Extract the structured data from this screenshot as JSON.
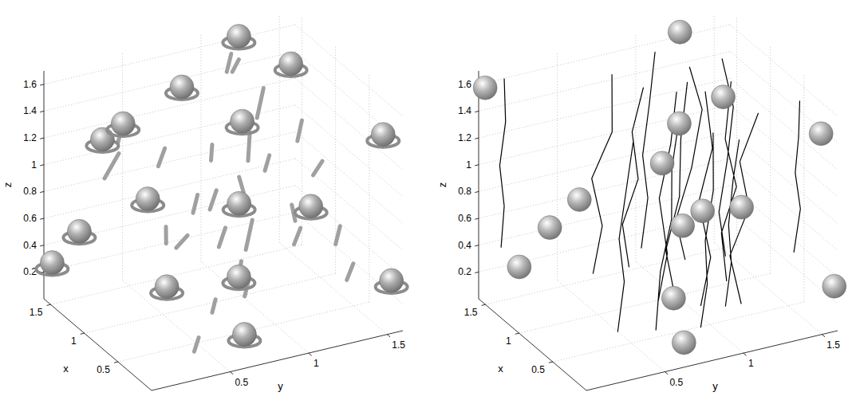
{
  "chart_data": [
    {
      "type": "scatter3d",
      "xlabel": "x",
      "ylabel": "y",
      "zlabel": "z",
      "xlim": [
        0,
        1.6
      ],
      "ylim": [
        0,
        1.6
      ],
      "zlim": [
        0,
        1.7
      ],
      "xticks": [
        0.5,
        1,
        1.5
      ],
      "yticks": [
        0.5,
        1,
        1.5
      ],
      "zticks": [
        0.2,
        0.4,
        0.6,
        0.8,
        1,
        1.2,
        1.4,
        1.6
      ],
      "grid": true,
      "series": [
        {
          "type": "line",
          "color": "#a0a0a0",
          "x": [
            0.9,
            0.92,
            null,
            0.85,
            0.8,
            null,
            0.7,
            0.72,
            null,
            0.6,
            0.65,
            null,
            1.0,
            1.02,
            null,
            0.5,
            0.45,
            null,
            1.2,
            1.25,
            null,
            1.4,
            1.42,
            null,
            1.3,
            1.25,
            null,
            0.4,
            0.38,
            null,
            0.3,
            0.35,
            null,
            1.1,
            1.15,
            null,
            0.2,
            0.25,
            null,
            1.5,
            1.45,
            null,
            0.6,
            0.62,
            null,
            0.95,
            1.0,
            null,
            0.75,
            0.78,
            null,
            1.45,
            1.5,
            null,
            0.3,
            0.35,
            null,
            1.0,
            1.02,
            null,
            0.8,
            0.82,
            null,
            1.35,
            1.4,
            null,
            0.55,
            0.6,
            null,
            1.1,
            1.12,
            null,
            0.25,
            0.3,
            null,
            1.25,
            1.27
          ],
          "y": [
            1.0,
            1.02,
            null,
            0.95,
            0.9,
            null,
            0.9,
            0.95,
            null,
            0.8,
            0.85,
            null,
            1.1,
            1.15,
            null,
            0.6,
            0.6,
            null,
            0.3,
            0.35,
            null,
            0.3,
            0.4,
            null,
            0.6,
            0.62,
            null,
            1.2,
            1.25,
            null,
            1.3,
            1.35,
            null,
            1.4,
            1.45,
            null,
            1.0,
            1.0,
            null,
            0.8,
            0.85,
            null,
            1.5,
            1.55,
            null,
            0.5,
            0.52,
            null,
            0.7,
            0.72,
            null,
            1.1,
            1.15,
            null,
            0.4,
            0.45,
            null,
            0.8,
            0.85,
            null,
            1.25,
            1.3,
            null,
            1.3,
            1.35,
            null,
            0.5,
            0.55,
            null,
            0.9,
            0.95,
            null,
            0.7,
            0.75,
            null,
            1.05,
            1.1
          ],
          "z": [
            1.05,
            1.25,
            null,
            0.85,
            1.0,
            null,
            0.5,
            0.7,
            null,
            0.3,
            0.45,
            null,
            1.3,
            1.5,
            null,
            0.2,
            0.32,
            null,
            1.25,
            1.35,
            null,
            0.9,
            1.05,
            null,
            0.95,
            1.1,
            null,
            1.1,
            1.2,
            null,
            0.6,
            0.7,
            null,
            1.0,
            1.12,
            null,
            0.9,
            1.0,
            null,
            0.2,
            0.3,
            null,
            0.15,
            0.25,
            null,
            0.55,
            0.65,
            null,
            1.2,
            1.3,
            null,
            1.45,
            1.55,
            null,
            0.05,
            0.12,
            null,
            0.7,
            0.82,
            null,
            0.4,
            0.5,
            null,
            0.7,
            0.78,
            null,
            0.95,
            1.05,
            null,
            0.35,
            0.47,
            null,
            0.4,
            0.5,
            null,
            1.55,
            1.62
          ]
        },
        {
          "type": "scatter",
          "marker": "shell",
          "color": "#b0b0b0",
          "x": [
            1.55,
            1.3,
            1.1,
            0.8,
            0.2,
            1.2,
            0.9,
            0.5,
            0.3,
            1.5,
            1.4,
            1.5,
            0.8,
            0.1,
            1.5,
            1.5
          ],
          "y": [
            1.22,
            0.75,
            0.29,
            0.92,
            1.56,
            0.49,
            1.4,
            0.77,
            0.72,
            0.01,
            0.14,
            1.2,
            0.44,
            1.57,
            0.33,
            1.53
          ],
          "z": [
            1.64,
            1.5,
            1.44,
            1.41,
            1.39,
            0.78,
            0.6,
            0.42,
            0.09,
            0.31,
            0.55,
            0.42,
            0.31,
            0.34,
            1.14,
            1.37
          ]
        }
      ]
    },
    {
      "type": "scatter3d",
      "xlabel": "x",
      "ylabel": "y",
      "zlabel": "z",
      "xlim": [
        0,
        1.6
      ],
      "ylim": [
        0,
        1.6
      ],
      "zlim": [
        0,
        1.7
      ],
      "xticks": [
        0.5,
        1,
        1.5
      ],
      "yticks": [
        0.5,
        1,
        1.5
      ],
      "zticks": [
        0.2,
        0.4,
        0.6,
        0.8,
        1,
        1.2,
        1.4,
        1.6
      ],
      "grid": true,
      "series": [
        {
          "type": "line",
          "color": "#000000",
          "x": [
            0.9,
            0.92,
            0.88,
            0.93,
            0.95,
            null,
            0.8,
            0.78,
            0.83,
            0.8,
            0.76,
            null,
            1.1,
            1.12,
            1.05,
            1.08,
            1.15,
            null,
            0.6,
            0.65,
            0.6,
            0.55,
            0.6,
            null,
            1.3,
            1.28,
            1.32,
            1.25,
            1.3,
            null,
            0.5,
            0.55,
            0.5,
            0.52,
            0.48,
            null,
            1.5,
            1.5,
            1.52,
            1.55,
            1.5,
            null,
            1.0,
            1.05,
            0.98,
            1.0,
            1.02,
            null,
            0.3,
            0.32,
            0.28,
            0.3,
            0.33,
            null,
            0.7,
            0.72,
            0.68,
            0.75,
            0.7,
            null,
            1.2,
            1.18,
            1.22,
            1.2,
            1.25,
            null,
            0.4,
            0.42,
            0.38,
            0.4,
            0.45,
            null,
            1.4,
            1.42,
            1.38,
            1.4,
            1.43,
            null,
            0.95,
            0.98,
            0.92,
            0.97,
            1.0,
            null,
            0.15,
            0.18,
            0.15,
            0.2,
            0.18,
            null,
            0.75,
            0.72,
            0.78,
            0.74,
            0.8
          ],
          "y": [
            0.95,
            0.9,
            0.97,
            1.0,
            1.05,
            null,
            0.8,
            0.85,
            0.82,
            0.88,
            0.9,
            null,
            1.1,
            1.05,
            1.12,
            1.2,
            1.15,
            null,
            0.7,
            0.75,
            0.8,
            0.78,
            0.85,
            null,
            0.6,
            0.65,
            0.6,
            0.7,
            0.72,
            null,
            1.2,
            1.15,
            1.25,
            1.2,
            1.3,
            null,
            0.1,
            0.12,
            0.1,
            0.15,
            0.12,
            null,
            0.7,
            0.68,
            0.75,
            0.72,
            0.8,
            null,
            1.45,
            1.5,
            1.45,
            1.48,
            1.5,
            null,
            0.5,
            0.55,
            0.5,
            0.58,
            0.6,
            null,
            1.4,
            1.35,
            1.42,
            1.45,
            1.4,
            null,
            0.9,
            0.95,
            0.92,
            0.98,
            1.0,
            null,
            0.95,
            1.0,
            0.95,
            1.0,
            1.05,
            null,
            1.3,
            1.28,
            1.35,
            1.3,
            1.35,
            null,
            0.95,
            1.0,
            0.97,
            1.02,
            1.05,
            null,
            1.05,
            1.1,
            1.05,
            1.12,
            1.1
          ],
          "z": [
            0.05,
            0.4,
            0.8,
            1.2,
            1.6,
            null,
            0.1,
            0.45,
            0.85,
            1.25,
            1.65,
            null,
            0.2,
            0.5,
            0.9,
            1.3,
            1.6,
            null,
            0.0,
            0.4,
            0.8,
            1.2,
            1.55,
            null,
            0.15,
            0.5,
            0.85,
            1.2,
            1.6,
            null,
            0.1,
            0.45,
            0.8,
            1.15,
            1.5,
            null,
            0.4,
            0.7,
            1.0,
            1.3,
            1.65,
            null,
            0.3,
            0.6,
            0.95,
            1.3,
            1.6,
            null,
            0.5,
            0.8,
            1.1,
            1.35,
            1.6,
            null,
            0.0,
            0.35,
            0.7,
            1.05,
            1.4,
            null,
            0.1,
            0.45,
            0.8,
            1.2,
            1.55,
            null,
            0.05,
            0.35,
            0.7,
            1.05,
            1.45,
            null,
            0.2,
            0.55,
            0.9,
            1.25,
            1.62,
            null,
            0.05,
            0.4,
            0.75,
            1.1,
            1.5,
            null,
            0.3,
            0.6,
            0.9,
            1.2,
            1.5,
            null,
            0.02,
            0.38,
            0.78,
            1.18,
            1.58
          ]
        },
        {
          "type": "scatter",
          "marker": "sphere",
          "color": "#b8b8b8",
          "x": [
            1.55,
            1.55,
            1.0,
            1.0,
            0.2,
            1.3,
            1.2,
            0.7,
            0.6,
            1.1,
            1.5,
            1.3,
            0.5,
            0.3,
            0.05
          ],
          "y": [
            1.26,
            0.02,
            1.3,
            1.02,
            1.58,
            1.04,
            0.47,
            1.04,
            0.87,
            1.46,
            0.41,
            0.13,
            0.77,
            0.75,
            1.6
          ],
          "z": [
            1.66,
            1.59,
            1.4,
            1.28,
            1.39,
            0.85,
            0.78,
            0.75,
            0.73,
            0.49,
            0.46,
            0.33,
            0.26,
            0.02,
            0.31
          ]
        }
      ]
    }
  ]
}
